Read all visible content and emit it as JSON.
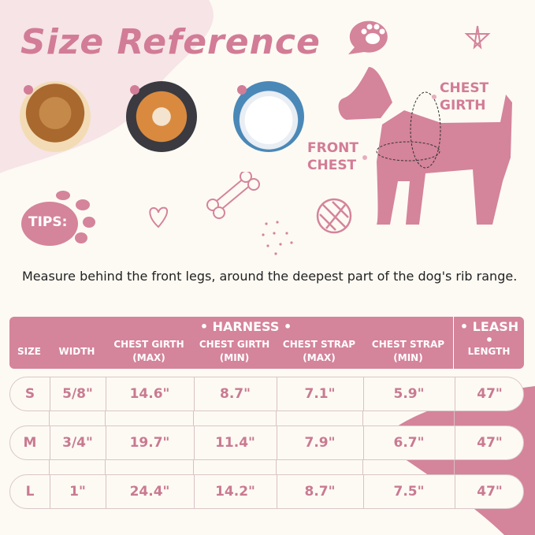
{
  "title": "Size Reference",
  "diagram": {
    "chest_girth": [
      "CHEST",
      "GIRTH"
    ],
    "front_chest": [
      "FRONT",
      "CHEST"
    ]
  },
  "tips_label": "TIPS:",
  "measure_text": "Measure behind the front legs, around the deepest part of the dog's rib range.",
  "colors": {
    "accent": "#d4849b",
    "background": "#fdfaf3"
  },
  "table": {
    "group_harness": "• HARNESS •",
    "group_leash": "• LEASH •",
    "headers": [
      [
        "SIZE"
      ],
      [
        "WIDTH"
      ],
      [
        "CHEST GIRTH",
        "(MAX)"
      ],
      [
        "CHEST GIRTH",
        "(MIN)"
      ],
      [
        "CHEST STRAP",
        "(MAX)"
      ],
      [
        "CHEST STRAP",
        "(MIN)"
      ],
      [
        "LENGTH"
      ]
    ],
    "rows": [
      [
        "S",
        "5/8\"",
        "14.6\"",
        "8.7\"",
        "7.1\"",
        "5.9\"",
        "47\""
      ],
      [
        "M",
        "3/4\"",
        "19.7\"",
        "11.4\"",
        "7.9\"",
        "6.7\"",
        "47\""
      ],
      [
        "L",
        "1\"",
        "24.4\"",
        "14.2\"",
        "8.7\"",
        "7.5\"",
        "47\""
      ]
    ]
  }
}
